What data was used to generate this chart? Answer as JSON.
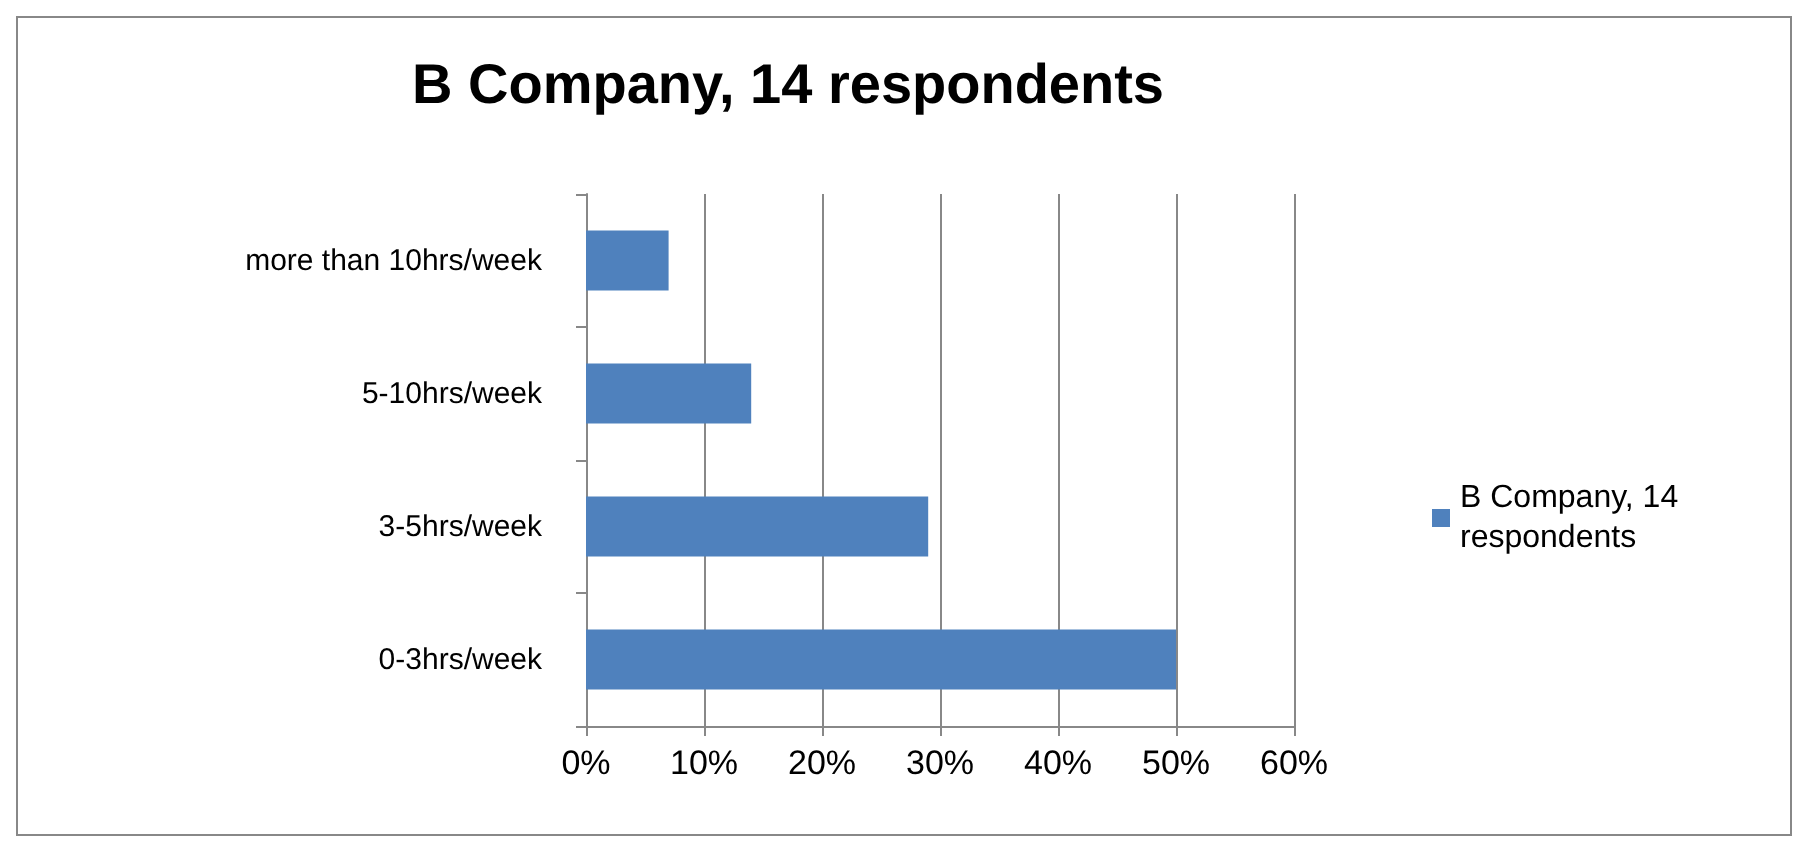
{
  "chart_data": {
    "type": "bar",
    "orientation": "horizontal",
    "title": "B Company, 14 respondents",
    "categories": [
      "more than 10hrs/week",
      "5-10hrs/week",
      "3-5hrs/week",
      "0-3hrs/week"
    ],
    "series": [
      {
        "name": "B Company, 14 respondents",
        "color": "#4f81bd",
        "values": [
          7,
          14,
          29,
          50
        ]
      }
    ],
    "xlim": [
      0,
      60
    ],
    "xticks": [
      {
        "value": 0,
        "label": "0%"
      },
      {
        "value": 10,
        "label": "10%"
      },
      {
        "value": 20,
        "label": "20%"
      },
      {
        "value": 30,
        "label": "30%"
      },
      {
        "value": 40,
        "label": "40%"
      },
      {
        "value": 50,
        "label": "50%"
      },
      {
        "value": 60,
        "label": "60%"
      }
    ],
    "grid": "x",
    "legend": "right"
  }
}
